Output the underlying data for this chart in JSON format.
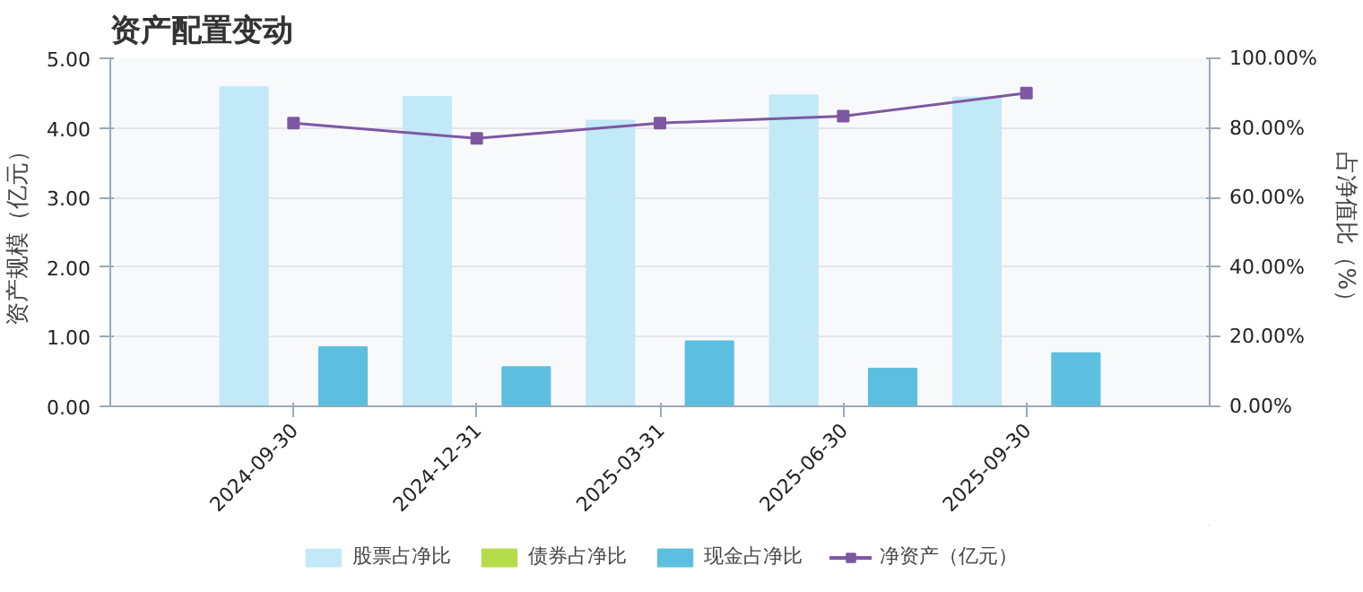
{
  "chart_data": {
    "type": "bar",
    "title": "资产配置变动",
    "ylabel": "资产规模（亿元）",
    "y2label": "占净值比（%）",
    "categories": [
      "2024-09-30",
      "2024-12-31",
      "2025-03-31",
      "2025-06-30",
      "2025-09-30"
    ],
    "series": [
      {
        "name": "股票占净比",
        "color": "#c2e9f7",
        "axis": "y2",
        "values": [
          91.7,
          88.9,
          82.1,
          89.4,
          88.7
        ]
      },
      {
        "name": "债券占净比",
        "color": "#b5dd4a",
        "axis": "y2",
        "values": [
          null,
          null,
          null,
          null,
          null
        ]
      },
      {
        "name": "现金占净比",
        "color": "#5dbfe0",
        "axis": "y2",
        "values": [
          17.0,
          11.3,
          18.7,
          10.8,
          15.3
        ]
      },
      {
        "name": "净资产（亿元）",
        "type": "line",
        "color": "#7e57a3",
        "marker": "square",
        "values": [
          4.07,
          3.85,
          4.07,
          4.17,
          4.5
        ]
      }
    ],
    "ylim": [
      0,
      5
    ],
    "yticks": [
      {
        "value": 0,
        "label": "0.00"
      },
      {
        "value": 1,
        "label": "1.00"
      },
      {
        "value": 2,
        "label": "2.00"
      },
      {
        "value": 3,
        "label": "3.00"
      },
      {
        "value": 4,
        "label": "4.00"
      },
      {
        "value": 5,
        "label": "5.00"
      }
    ],
    "y2lim": [
      0,
      100
    ],
    "y2ticks": [
      {
        "value": 0,
        "label": "0.00%"
      },
      {
        "value": 20,
        "label": "20.00%"
      },
      {
        "value": 40,
        "label": "40.00%"
      },
      {
        "value": 60,
        "label": "60.00%"
      },
      {
        "value": 80,
        "label": "80.00%"
      },
      {
        "value": 100,
        "label": "100.00%"
      }
    ],
    "grid": "y",
    "legend": "bottom"
  }
}
